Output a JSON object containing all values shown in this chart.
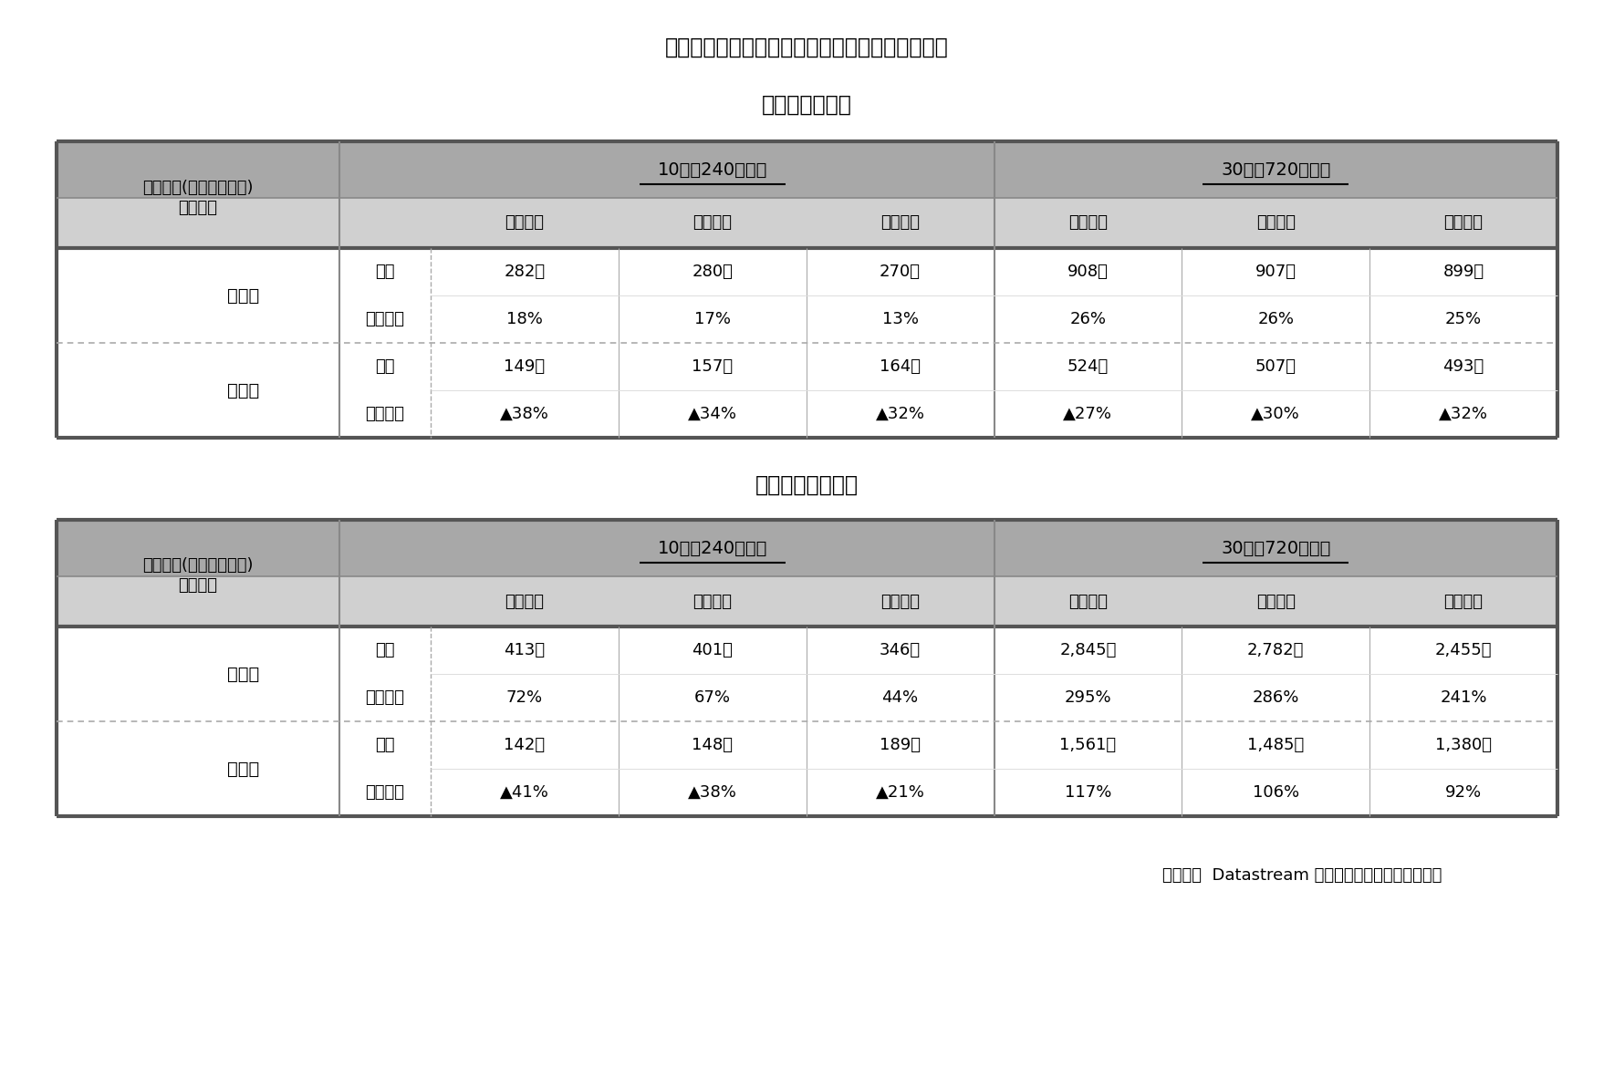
{
  "title": "図表４　投資可能額２万円とした場合の運用実績",
  "subtitle1": "（ＴＯＰＩＸ）",
  "subtitle2": "（Ｓ＆Ｐ５００）",
  "footer": "（資料）  Datastream よりニッセイ基礎研究所作成",
  "table1": {
    "rows": [
      {
        "label1": "平均値",
        "label2": "実額",
        "vals": [
          "282万",
          "280万",
          "270万",
          "908万",
          "907万",
          "899万"
        ]
      },
      {
        "label1": "",
        "label2": "リターン",
        "vals": [
          "18%",
          "17%",
          "13%",
          "26%",
          "26%",
          "25%"
        ]
      },
      {
        "label1": "最小値",
        "label2": "実額",
        "vals": [
          "149万",
          "157万",
          "164万",
          "524万",
          "507万",
          "493万"
        ]
      },
      {
        "label1": "",
        "label2": "リターン",
        "vals": [
          "▲38%",
          "▲34%",
          "▲32%",
          "▲27%",
          "▲30%",
          "▲32%"
        ]
      }
    ]
  },
  "table2": {
    "rows": [
      {
        "label1": "平均値",
        "label2": "実額",
        "vals": [
          "413万",
          "401万",
          "346万",
          "2,845万",
          "2,782万",
          "2,455万"
        ]
      },
      {
        "label1": "",
        "label2": "リターン",
        "vals": [
          "72%",
          "67%",
          "44%",
          "295%",
          "286%",
          "241%"
        ]
      },
      {
        "label1": "最小値",
        "label2": "実額",
        "vals": [
          "142万",
          "148万",
          "189万",
          "1,561万",
          "1,485万",
          "1,380万"
        ]
      },
      {
        "label1": "",
        "label2": "リターン",
        "vals": [
          "▲41%",
          "▲38%",
          "▲21%",
          "117%",
          "106%",
          "92%"
        ]
      }
    ]
  },
  "col_header1": "10年（240万円）",
  "col_header2": "30年（720万円）",
  "header_label1": "対象期間(積立金額総額)",
  "header_label2": "積立方法",
  "col_sub_labels": [
    "毎月積立",
    "１年待機",
    "５年待機",
    "毎月積立",
    "１年待機",
    "５年待機"
  ],
  "group_labels": [
    "平均値",
    "最小値"
  ],
  "row_labels": [
    "実額",
    "リターン",
    "実額",
    "リターン"
  ],
  "header_bg_dark": "#a8a8a8",
  "header_bg_light": "#d0d0d0",
  "border_dark": "#555555",
  "border_mid": "#888888",
  "border_light": "#aaaaaa",
  "border_dotted": "#aaaaaa"
}
